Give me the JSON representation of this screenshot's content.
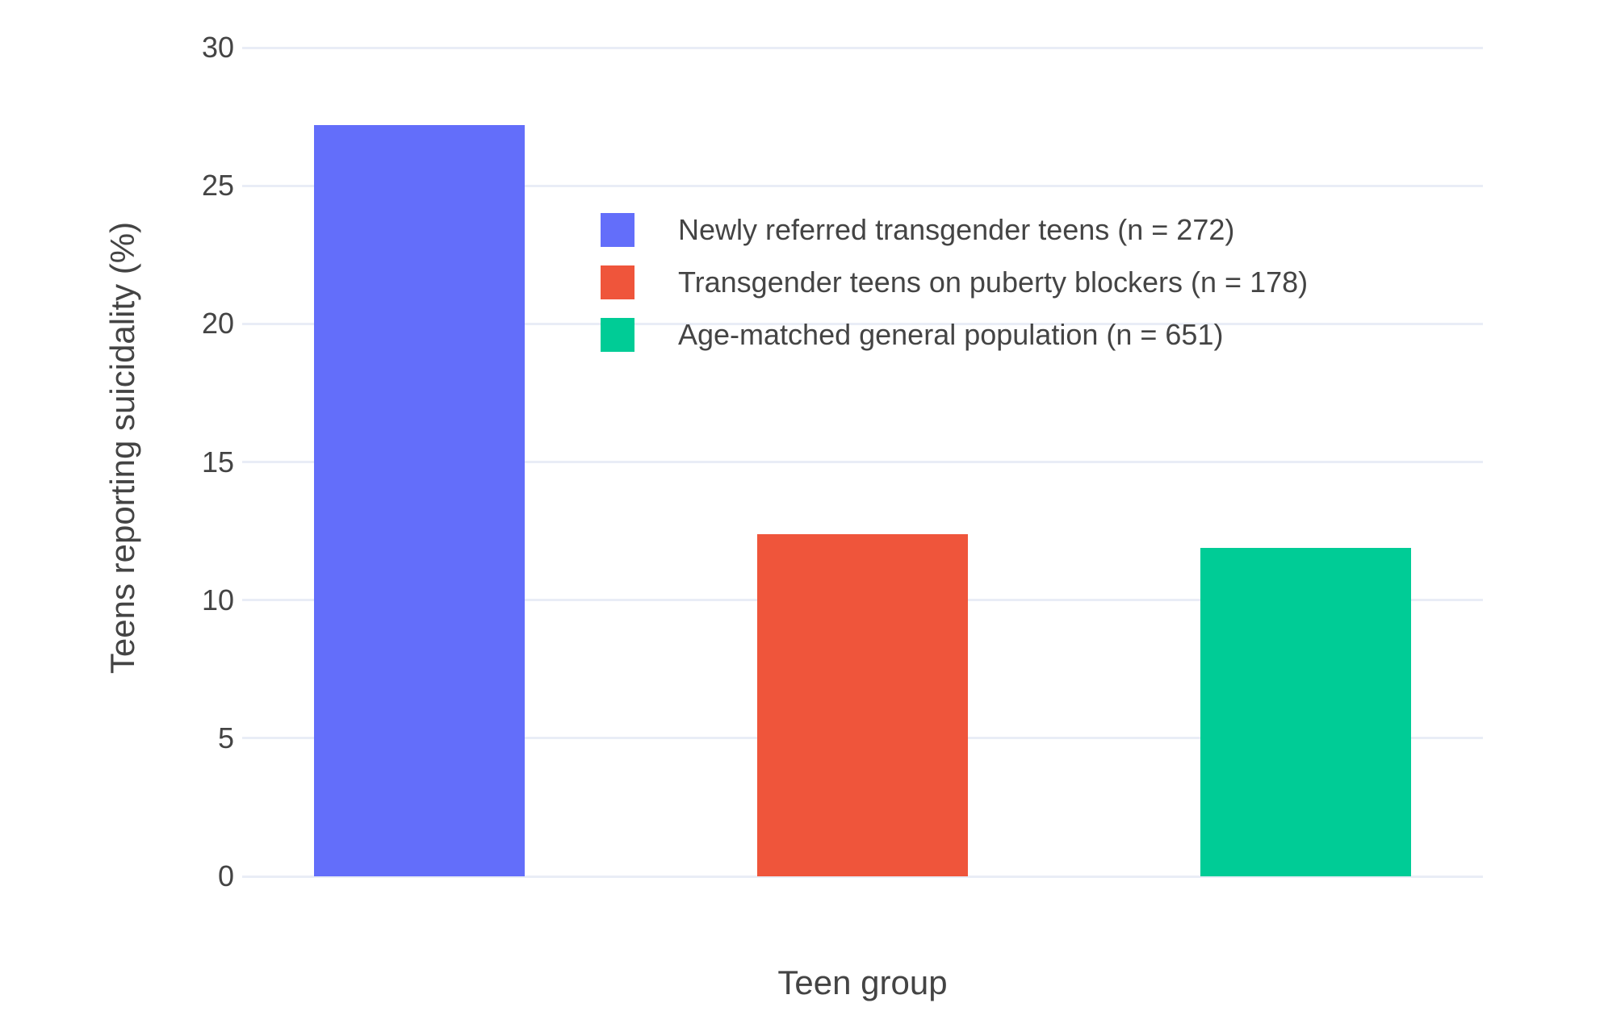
{
  "chart_data": {
    "type": "bar",
    "title": "",
    "xlabel": "Teen group",
    "ylabel": "Teens reporting suicidality (%)",
    "categories": [
      "Newly referred transgender teens (n = 272)",
      "Transgender teens on puberty blockers (n = 178)",
      "Age-matched general population (n = 651)"
    ],
    "values": [
      27.2,
      12.4,
      11.9
    ],
    "bar_colors": [
      "#636EFA",
      "#EF553B",
      "#00CC96"
    ],
    "yticks": [
      0,
      5,
      10,
      15,
      20,
      25,
      30
    ],
    "ylim": [
      0,
      30
    ],
    "grid": true,
    "x_tick_labels_shown": false,
    "legend_position": "inside-top-center",
    "legend": [
      {
        "label": "Newly referred transgender teens (n = 272)",
        "color": "#636EFA"
      },
      {
        "label": "Transgender teens on puberty blockers (n = 178)",
        "color": "#EF553B"
      },
      {
        "label": "Age-matched general population (n = 651)",
        "color": "#00CC96"
      }
    ]
  },
  "colors": {
    "grid": "#E9EDF6",
    "text": "#444444",
    "background": "#FFFFFF"
  }
}
